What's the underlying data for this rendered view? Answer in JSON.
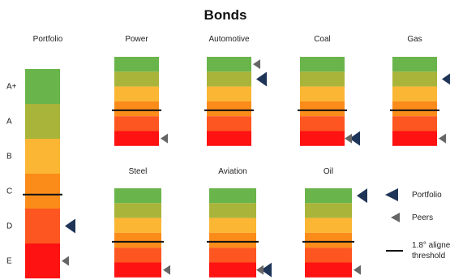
{
  "chart_data": {
    "type": "rating_bar_panels",
    "title": "Bonds",
    "bands": [
      {
        "name": "A+",
        "color": "#6ab44c"
      },
      {
        "name": "A",
        "color": "#a9b43a"
      },
      {
        "name": "B",
        "color": "#fbb634"
      },
      {
        "name": "C",
        "color": "#fb8c1a"
      },
      {
        "name": "D",
        "color": "#fd5620"
      },
      {
        "name": "E",
        "color": "#fe1212"
      }
    ],
    "colors": {
      "marker_portfolio": "#1f3558",
      "marker_peers": "#666666",
      "threshold": "#111111"
    },
    "portfolio": {
      "label": "Portfolio",
      "band_labels": [
        "A+",
        "A",
        "B",
        "C",
        "D",
        "E"
      ],
      "threshold": "C",
      "portfolio_marker": "D",
      "peers_marker": "E"
    },
    "sectors": [
      {
        "name": "Power",
        "threshold": "C",
        "peers_marker": "E",
        "portfolio_marker": null
      },
      {
        "name": "Automotive",
        "threshold": "C",
        "peers_marker": "A+",
        "portfolio_marker": "A"
      },
      {
        "name": "Coal",
        "threshold": "C",
        "peers_marker": "E",
        "portfolio_marker": "E"
      },
      {
        "name": "Gas",
        "threshold": "C",
        "peers_marker": "E",
        "portfolio_marker": "A"
      },
      {
        "name": "Steel",
        "threshold": "C",
        "peers_marker": "E",
        "portfolio_marker": null
      },
      {
        "name": "Aviation",
        "threshold": "C",
        "peers_marker": "E",
        "portfolio_marker": "E"
      },
      {
        "name": "Oil",
        "threshold": "C",
        "peers_marker": "E",
        "portfolio_marker": "A+"
      }
    ],
    "legend": {
      "portfolio": "Portfolio",
      "peers": "Peers",
      "threshold_line1": "1.8° aligned",
      "threshold_line2": "threshold"
    }
  }
}
